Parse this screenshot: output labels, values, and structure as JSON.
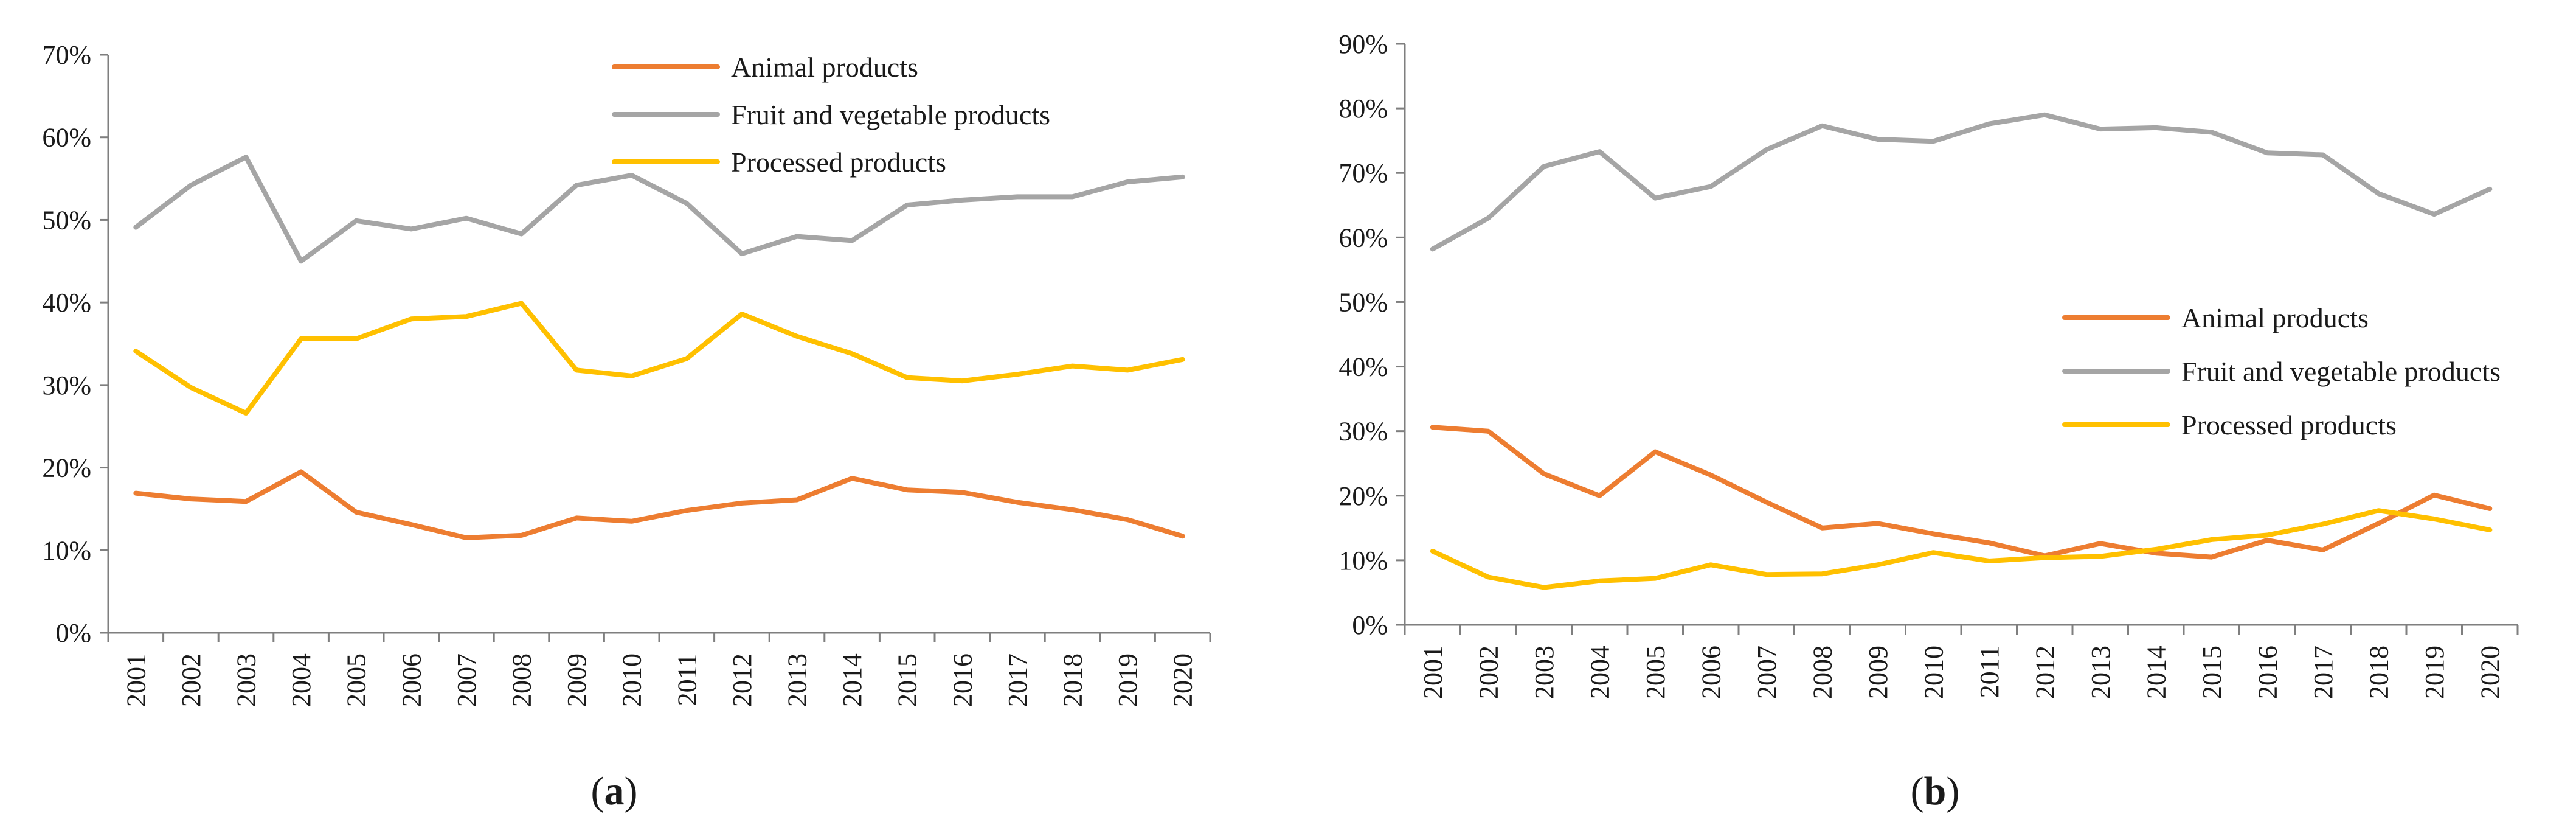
{
  "colors": {
    "animal": "#ED7D31",
    "fruit": "#A5A5A5",
    "processed": "#FFC000",
    "axis": "#7f7f7f"
  },
  "chart_data": [
    {
      "id": "a",
      "type": "line",
      "title": "",
      "xlabel": "",
      "ylabel": "",
      "panel_label": "(a)",
      "panel_letter": "a",
      "categories": [
        "2001",
        "2002",
        "2003",
        "2004",
        "2005",
        "2006",
        "2007",
        "2008",
        "2009",
        "2010",
        "2011",
        "2012",
        "2013",
        "2014",
        "2015",
        "2016",
        "2017",
        "2018",
        "2019",
        "2020"
      ],
      "ylim": [
        0,
        70
      ],
      "yticks": [
        0,
        10,
        20,
        30,
        40,
        50,
        60,
        70
      ],
      "ytick_labels": [
        "0%",
        "10%",
        "20%",
        "30%",
        "40%",
        "50%",
        "60%",
        "70%"
      ],
      "legend_position": "top-right",
      "series": [
        {
          "key": "animal",
          "name": "Animal products",
          "values": [
            16.9,
            16.2,
            15.9,
            19.5,
            14.6,
            13.1,
            11.5,
            11.8,
            13.9,
            13.5,
            14.8,
            15.7,
            16.1,
            18.7,
            17.3,
            17.0,
            15.8,
            14.9,
            13.7,
            11.7
          ]
        },
        {
          "key": "fruit",
          "name": "Fruit and vegetable products",
          "values": [
            49.1,
            54.2,
            57.6,
            45.0,
            49.9,
            48.9,
            50.2,
            48.3,
            54.2,
            55.4,
            52.0,
            45.9,
            48.0,
            47.5,
            51.8,
            52.4,
            52.8,
            52.8,
            54.6,
            55.2
          ]
        },
        {
          "key": "processed",
          "name": "Processed products",
          "values": [
            34.1,
            29.7,
            26.6,
            35.6,
            35.6,
            38.0,
            38.3,
            39.9,
            31.8,
            31.1,
            33.2,
            38.6,
            35.9,
            33.8,
            30.9,
            30.5,
            31.3,
            32.3,
            31.8,
            33.1
          ]
        }
      ]
    },
    {
      "id": "b",
      "type": "line",
      "title": "",
      "xlabel": "",
      "ylabel": "",
      "panel_label": "(b)",
      "panel_letter": "b",
      "categories": [
        "2001",
        "2002",
        "2003",
        "2004",
        "2005",
        "2006",
        "2007",
        "2008",
        "2009",
        "2010",
        "2011",
        "2012",
        "2013",
        "2014",
        "2015",
        "2016",
        "2017",
        "2018",
        "2019",
        "2020"
      ],
      "ylim": [
        0,
        90
      ],
      "yticks": [
        0,
        10,
        20,
        30,
        40,
        50,
        60,
        70,
        80,
        90
      ],
      "ytick_labels": [
        "0%",
        "10%",
        "20%",
        "30%",
        "40%",
        "50%",
        "60%",
        "70%",
        "80%",
        "90%"
      ],
      "legend_position": "center-right",
      "series": [
        {
          "key": "animal",
          "name": "Animal products",
          "values": [
            30.6,
            30.0,
            23.4,
            20.0,
            26.8,
            23.2,
            19.0,
            15.0,
            15.7,
            14.1,
            12.7,
            10.7,
            12.6,
            11.1,
            10.5,
            13.1,
            11.6,
            15.7,
            20.1,
            18.0
          ]
        },
        {
          "key": "fruit",
          "name": "Fruit and vegetable products",
          "values": [
            58.2,
            63.0,
            71.0,
            73.3,
            66.1,
            67.9,
            73.6,
            77.3,
            75.2,
            74.9,
            77.6,
            79.0,
            76.8,
            77.0,
            76.3,
            73.1,
            72.8,
            66.8,
            63.6,
            67.5
          ]
        },
        {
          "key": "processed",
          "name": "Processed products",
          "values": [
            11.4,
            7.4,
            5.8,
            6.8,
            7.2,
            9.3,
            7.8,
            7.9,
            9.3,
            11.2,
            9.9,
            10.4,
            10.6,
            11.7,
            13.2,
            13.9,
            15.6,
            17.7,
            16.4,
            14.7
          ]
        }
      ]
    }
  ]
}
